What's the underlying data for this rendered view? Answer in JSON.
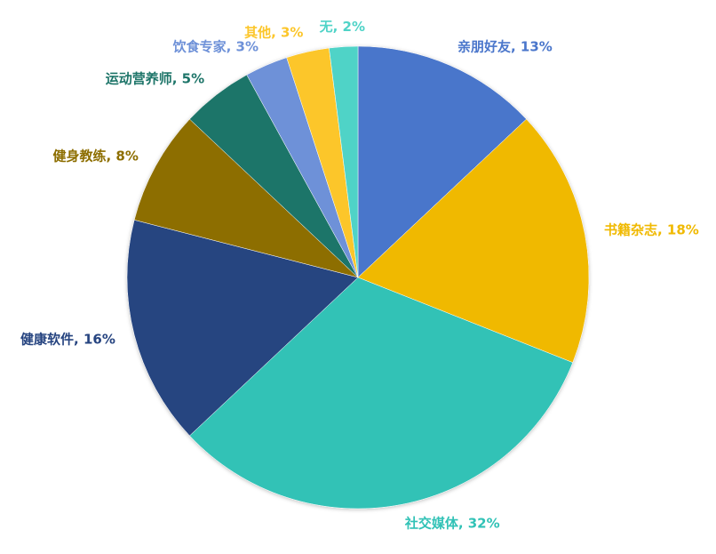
{
  "chart_data": {
    "type": "pie",
    "values": [
      13,
      18,
      32,
      16,
      8,
      5,
      3,
      3,
      2
    ],
    "value_labels": [
      "亲朋好友, 13%",
      "书籍杂志, 18%",
      "社交媒体, 32%",
      "健康软件, 16%",
      "健身教练, 8%",
      "运动营养师, 5%",
      "饮食专家, 3%",
      "其他, 3%",
      "无, 2%"
    ],
    "colors": [
      "#4a76cb",
      "#f0b900",
      "#31c2b6",
      "#264480",
      "#8d6e00",
      "#1e7569",
      "#6e91d8",
      "#fcc62b",
      "#4fd3c7"
    ]
  }
}
